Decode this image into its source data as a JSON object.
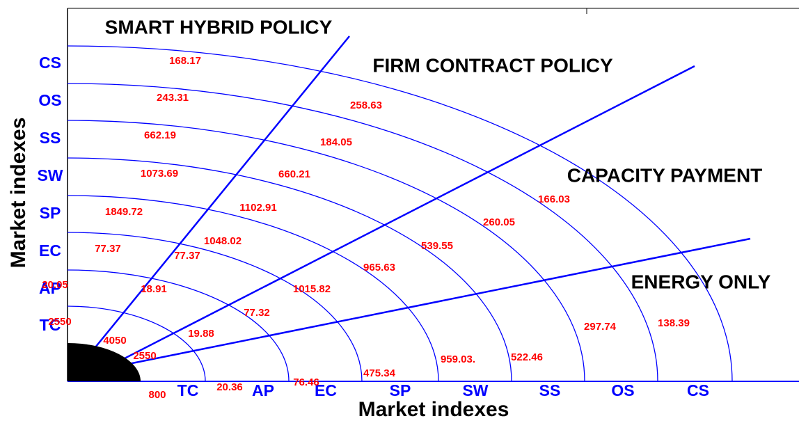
{
  "policies": [
    "SMART HYBRID POLICY",
    "FIRM CONTRACT POLICY",
    "CAPACITY PAYMENT",
    "ENERGY ONLY"
  ],
  "x_axis_label": "Market indexes",
  "y_axis_label": "Market indexes",
  "rings": [
    "TC",
    "AP",
    "EC",
    "SP",
    "SW",
    "SS",
    "OS",
    "CS"
  ],
  "sectors": [
    [
      "2550",
      "20.05",
      "77.37",
      "1849.72",
      "1073.69",
      "662.19",
      "243.31",
      "168.17"
    ],
    [
      "4050",
      "18.91",
      "77.37",
      "1048.02",
      "1102.91",
      "660.21",
      "184.05",
      "258.63"
    ],
    [
      "2550",
      "19.88",
      "77.32",
      "1015.82",
      "965.63",
      "539.55",
      "260.05",
      "166.03"
    ],
    [
      "800",
      "20.36",
      "76.46",
      "475.34",
      "959.03.",
      "522.46",
      "297.74",
      "138.39"
    ]
  ]
}
